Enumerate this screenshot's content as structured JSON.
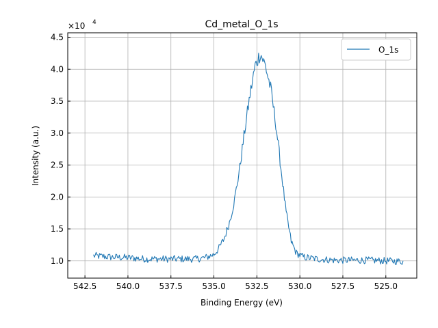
{
  "chart_data": {
    "type": "line",
    "title": "Cd_metal_O_1s",
    "xlabel": "Binding Energy (eV)",
    "ylabel": "Intensity (a.u.)",
    "y_scale_note": "×10",
    "y_scale_exponent": "4",
    "xlim": [
      543.5,
      523.2
    ],
    "ylim": [
      0.73,
      4.57
    ],
    "x_reversed": true,
    "xticks": [
      542.5,
      540.0,
      537.5,
      535.0,
      532.5,
      530.0,
      527.5,
      525.0
    ],
    "xtick_labels": [
      "542.5",
      "540.0",
      "537.5",
      "535.0",
      "532.5",
      "530.0",
      "527.5",
      "525.0"
    ],
    "yticks": [
      1.0,
      1.5,
      2.0,
      2.5,
      3.0,
      3.5,
      4.0,
      4.5
    ],
    "ytick_labels": [
      "1.0",
      "1.5",
      "2.0",
      "2.5",
      "3.0",
      "3.5",
      "4.0",
      "4.5"
    ],
    "grid": true,
    "legend_position": "top-right",
    "color": "#1f77b4",
    "series": [
      {
        "name": "O_1s",
        "x_start": 542.0,
        "x_end": 524.0,
        "x_step": 0.05,
        "anchors": [
          [
            542.0,
            1.08
          ],
          [
            541.0,
            1.06
          ],
          [
            540.0,
            1.05
          ],
          [
            539.0,
            1.03
          ],
          [
            538.0,
            1.03
          ],
          [
            537.0,
            1.03
          ],
          [
            536.0,
            1.03
          ],
          [
            535.5,
            1.05
          ],
          [
            535.0,
            1.1
          ],
          [
            534.7,
            1.2
          ],
          [
            534.4,
            1.35
          ],
          [
            534.1,
            1.6
          ],
          [
            533.8,
            1.95
          ],
          [
            533.5,
            2.45
          ],
          [
            533.2,
            3.05
          ],
          [
            532.9,
            3.6
          ],
          [
            532.6,
            4.05
          ],
          [
            532.3,
            4.25
          ],
          [
            532.0,
            4.05
          ],
          [
            531.7,
            3.7
          ],
          [
            531.4,
            3.15
          ],
          [
            531.1,
            2.45
          ],
          [
            530.8,
            1.75
          ],
          [
            530.5,
            1.3
          ],
          [
            530.2,
            1.12
          ],
          [
            529.8,
            1.06
          ],
          [
            529.0,
            1.03
          ],
          [
            528.0,
            1.01
          ],
          [
            527.0,
            1.01
          ],
          [
            526.0,
            1.01
          ],
          [
            525.0,
            1.0
          ],
          [
            524.0,
            0.99
          ]
        ],
        "noise_amplitude": 0.055
      }
    ]
  }
}
